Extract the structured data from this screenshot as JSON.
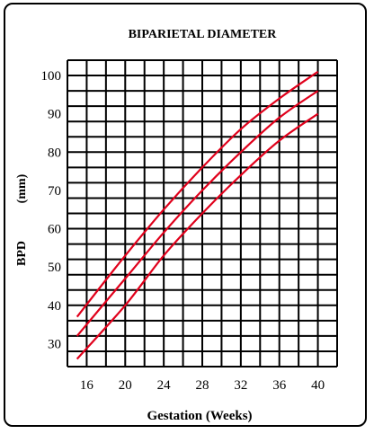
{
  "chart_data": {
    "type": "line",
    "title": "BIPARIETAL DIAMETER",
    "ylabel_main": "BPD",
    "ylabel_unit": "(mm)",
    "xlabel": "Gestation (Weeks)",
    "x_ticks": [
      16,
      20,
      24,
      28,
      32,
      36,
      40
    ],
    "y_ticks": [
      30,
      40,
      50,
      60,
      70,
      80,
      90,
      100
    ],
    "xlim": [
      14,
      42
    ],
    "ylim": [
      24,
      104
    ],
    "grid": true,
    "line_color": "#e0001b",
    "series": [
      {
        "x": [
          15,
          20,
          24,
          28,
          32,
          36,
          40
        ],
        "values": [
          37,
          53,
          65,
          76,
          86,
          94,
          101
        ]
      },
      {
        "x": [
          15,
          20,
          24,
          28,
          32,
          36,
          40
        ],
        "values": [
          32,
          47,
          59,
          70,
          80,
          89,
          96
        ]
      },
      {
        "x": [
          15,
          20,
          24,
          28,
          32,
          36,
          40
        ],
        "values": [
          26,
          40,
          53,
          64,
          74,
          83,
          90
        ]
      }
    ]
  }
}
